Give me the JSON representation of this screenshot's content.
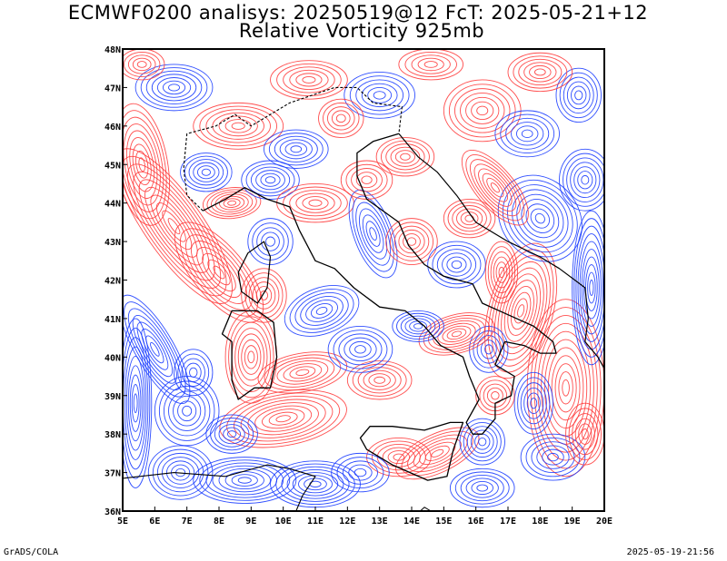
{
  "header": {
    "title_line1": "ECMWF0200 analisys: 20250519@12 FcT: 2025-05-21+12",
    "title_line2": "Relative Vorticity 925mb"
  },
  "footer": {
    "left": "GrADS/COLA",
    "right": "2025-05-19-21:56"
  },
  "map": {
    "lon_range": [
      5,
      20
    ],
    "lat_range": [
      36,
      48
    ],
    "x_tick_labels": [
      "5E",
      "6E",
      "7E",
      "8E",
      "9E",
      "10E",
      "11E",
      "12E",
      "13E",
      "14E",
      "15E",
      "16E",
      "17E",
      "18E",
      "19E",
      "20E"
    ],
    "y_tick_labels": [
      "36N",
      "37N",
      "38N",
      "39N",
      "40N",
      "41N",
      "42N",
      "43N",
      "44N",
      "45N",
      "46N",
      "47N",
      "48N"
    ],
    "colors": {
      "positive_contour": "#ff3b3b",
      "negative_contour": "#1a3cff",
      "coastline": "#000000",
      "frame": "#000000"
    }
  }
}
